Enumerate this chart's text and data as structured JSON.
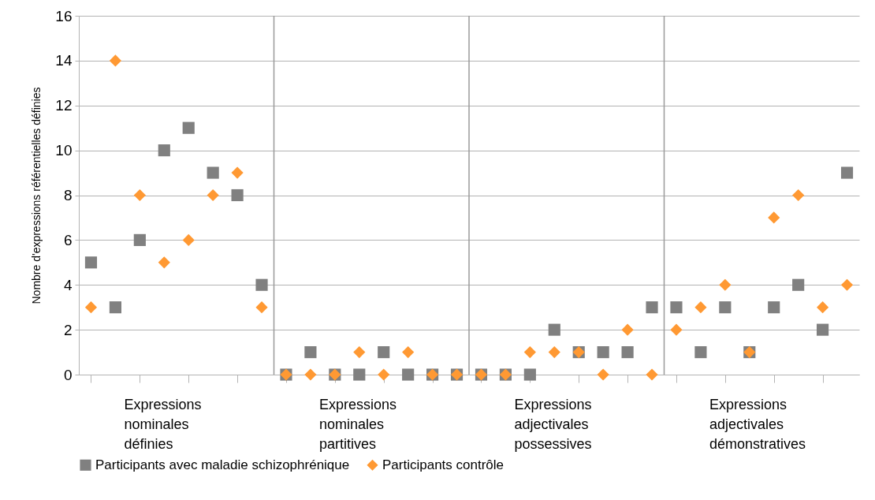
{
  "chart_data": {
    "type": "scatter",
    "ylabel": "Nombre d'expressions référentielles définies",
    "categories": [
      null,
      null,
      null,
      null,
      null,
      null,
      null,
      null,
      null,
      null,
      null,
      null,
      null,
      null,
      null,
      null,
      null,
      null,
      null,
      null,
      null,
      null,
      null,
      null,
      null,
      null,
      null,
      null,
      null,
      null,
      null,
      null
    ],
    "series": [
      {
        "name": "Participants avec maladie schizophrénique",
        "color": "#808080",
        "marker": "square",
        "values": [
          5,
          3,
          6,
          10,
          11,
          9,
          8,
          4,
          0,
          1,
          0,
          0,
          1,
          0,
          0,
          0,
          0,
          0,
          0,
          2,
          1,
          1,
          1,
          3,
          3,
          1,
          3,
          1,
          3,
          4,
          2,
          9
        ]
      },
      {
        "name": "Participants contrôle",
        "color": "#ff9933",
        "marker": "diamond",
        "values": [
          3,
          14,
          8,
          5,
          6,
          8,
          9,
          3,
          0,
          0,
          0,
          1,
          0,
          1,
          0,
          0,
          0,
          0,
          1,
          1,
          1,
          0,
          2,
          0,
          2,
          3,
          4,
          1,
          7,
          8,
          3,
          4
        ]
      }
    ],
    "annotations": [
      "Expressions nominales définies",
      "Expressions nominales partitives",
      "Expressions adjectivales possessives",
      "Expressions adjectivales démonstratives"
    ],
    "ylim": [
      0,
      16
    ],
    "yticks": [
      0,
      2,
      4,
      6,
      8,
      10,
      12,
      14,
      16
    ],
    "grid": "y",
    "legend": "bottom"
  }
}
